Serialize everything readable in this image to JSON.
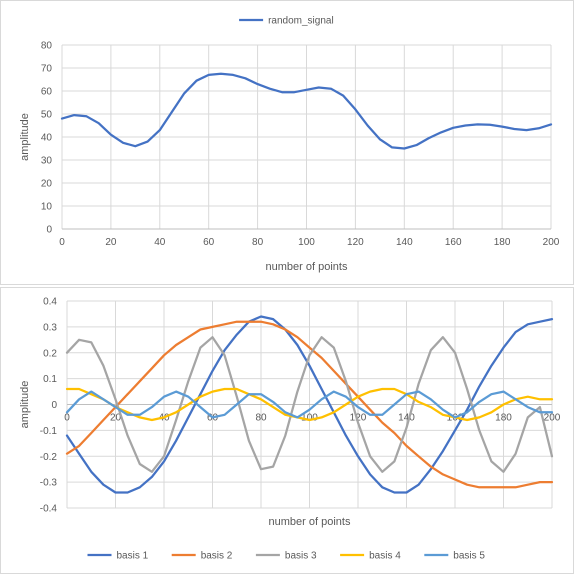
{
  "chart_data": [
    {
      "type": "line",
      "title": "",
      "xlabel": "number of points",
      "ylabel": "amplitude",
      "xlim": [
        0,
        200
      ],
      "ylim": [
        0,
        80
      ],
      "xticks": [
        0,
        20,
        40,
        60,
        80,
        100,
        120,
        140,
        160,
        180,
        200
      ],
      "yticks": [
        0,
        10,
        20,
        30,
        40,
        50,
        60,
        70,
        80
      ],
      "grid": true,
      "legend_position": "top",
      "series": [
        {
          "name": "random_signal",
          "color": "#4472C4",
          "x": [
            0,
            5,
            10,
            15,
            20,
            25,
            30,
            35,
            40,
            45,
            50,
            55,
            60,
            65,
            70,
            75,
            80,
            85,
            90,
            95,
            100,
            105,
            110,
            115,
            120,
            125,
            130,
            135,
            140,
            145,
            150,
            155,
            160,
            165,
            170,
            175,
            180,
            185,
            190,
            195,
            200
          ],
          "y": [
            48,
            49.5,
            49,
            46,
            41,
            37.5,
            36,
            38,
            43,
            51,
            59,
            64.5,
            67,
            67.5,
            67,
            65.5,
            63,
            61,
            59.5,
            59.5,
            60.5,
            61.5,
            61,
            58,
            52,
            45,
            39,
            35.5,
            35,
            36.5,
            39.5,
            42,
            44,
            45,
            45.5,
            45.3,
            44.5,
            43.5,
            43,
            43.8,
            45.5
          ]
        }
      ]
    },
    {
      "type": "line",
      "title": "",
      "xlabel": "number of points",
      "ylabel": "amplitude",
      "xlim": [
        0,
        200
      ],
      "ylim": [
        -0.4,
        0.4
      ],
      "xticks": [
        0,
        20,
        40,
        60,
        80,
        100,
        120,
        140,
        160,
        180,
        200
      ],
      "yticks": [
        -0.4,
        -0.3,
        -0.2,
        -0.1,
        0,
        0.1,
        0.2,
        0.3,
        0.4
      ],
      "ytick_labels": [
        "-0.4",
        "-0.3",
        "-0.2",
        "-0.1",
        "0",
        "0.1",
        "0.2",
        "0.3",
        "0.4"
      ],
      "grid": true,
      "legend_position": "bottom",
      "x": [
        0,
        5,
        10,
        15,
        20,
        25,
        30,
        35,
        40,
        45,
        50,
        55,
        60,
        65,
        70,
        75,
        80,
        85,
        90,
        95,
        100,
        105,
        110,
        115,
        120,
        125,
        130,
        135,
        140,
        145,
        150,
        155,
        160,
        165,
        170,
        175,
        180,
        185,
        190,
        195,
        200
      ],
      "series": [
        {
          "name": "basis 1",
          "color": "#4472C4",
          "y": [
            -0.12,
            -0.19,
            -0.26,
            -0.31,
            -0.34,
            -0.34,
            -0.32,
            -0.28,
            -0.22,
            -0.14,
            -0.05,
            0.04,
            0.13,
            0.21,
            0.27,
            0.32,
            0.34,
            0.33,
            0.29,
            0.23,
            0.15,
            0.06,
            -0.03,
            -0.12,
            -0.2,
            -0.27,
            -0.32,
            -0.34,
            -0.34,
            -0.31,
            -0.25,
            -0.18,
            -0.1,
            -0.02,
            0.07,
            0.15,
            0.22,
            0.28,
            0.31,
            0.32,
            0.33
          ]
        },
        {
          "name": "basis 2",
          "color": "#ED7D31",
          "y": [
            -0.19,
            -0.16,
            -0.11,
            -0.06,
            -0.01,
            0.04,
            0.09,
            0.14,
            0.19,
            0.23,
            0.26,
            0.29,
            0.3,
            0.31,
            0.32,
            0.32,
            0.32,
            0.31,
            0.29,
            0.26,
            0.22,
            0.18,
            0.13,
            0.08,
            0.03,
            -0.02,
            -0.07,
            -0.11,
            -0.16,
            -0.2,
            -0.24,
            -0.27,
            -0.29,
            -0.31,
            -0.32,
            -0.32,
            -0.32,
            -0.32,
            -0.31,
            -0.3,
            -0.3
          ]
        },
        {
          "name": "basis 3",
          "color": "#A5A5A5",
          "y": [
            0.2,
            0.25,
            0.24,
            0.15,
            0.02,
            -0.12,
            -0.23,
            -0.26,
            -0.2,
            -0.06,
            0.09,
            0.22,
            0.26,
            0.19,
            0.03,
            -0.14,
            -0.25,
            -0.24,
            -0.12,
            0.05,
            0.19,
            0.26,
            0.22,
            0.09,
            -0.07,
            -0.2,
            -0.26,
            -0.22,
            -0.09,
            0.08,
            0.21,
            0.26,
            0.2,
            0.06,
            -0.1,
            -0.22,
            -0.26,
            -0.19,
            -0.05,
            -0.01,
            -0.2
          ]
        },
        {
          "name": "basis 4",
          "color": "#FFC000",
          "y": [
            0.06,
            0.06,
            0.04,
            0.02,
            -0.01,
            -0.03,
            -0.05,
            -0.06,
            -0.05,
            -0.03,
            0.0,
            0.03,
            0.05,
            0.06,
            0.06,
            0.04,
            0.02,
            -0.01,
            -0.04,
            -0.05,
            -0.06,
            -0.05,
            -0.03,
            0.0,
            0.03,
            0.05,
            0.06,
            0.06,
            0.04,
            0.01,
            -0.01,
            -0.04,
            -0.05,
            -0.06,
            -0.05,
            -0.03,
            0.0,
            0.02,
            0.03,
            0.02,
            0.02
          ]
        },
        {
          "name": "basis 5",
          "color": "#5B9BD5",
          "y": [
            -0.03,
            0.02,
            0.05,
            0.02,
            -0.01,
            -0.04,
            -0.04,
            -0.01,
            0.03,
            0.05,
            0.03,
            -0.01,
            -0.05,
            -0.04,
            0.0,
            0.04,
            0.04,
            0.01,
            -0.03,
            -0.05,
            -0.02,
            0.02,
            0.05,
            0.03,
            -0.01,
            -0.04,
            -0.04,
            0.0,
            0.04,
            0.05,
            0.02,
            -0.02,
            -0.05,
            -0.03,
            0.01,
            0.04,
            0.05,
            0.02,
            -0.01,
            -0.03,
            -0.03
          ]
        }
      ]
    }
  ]
}
